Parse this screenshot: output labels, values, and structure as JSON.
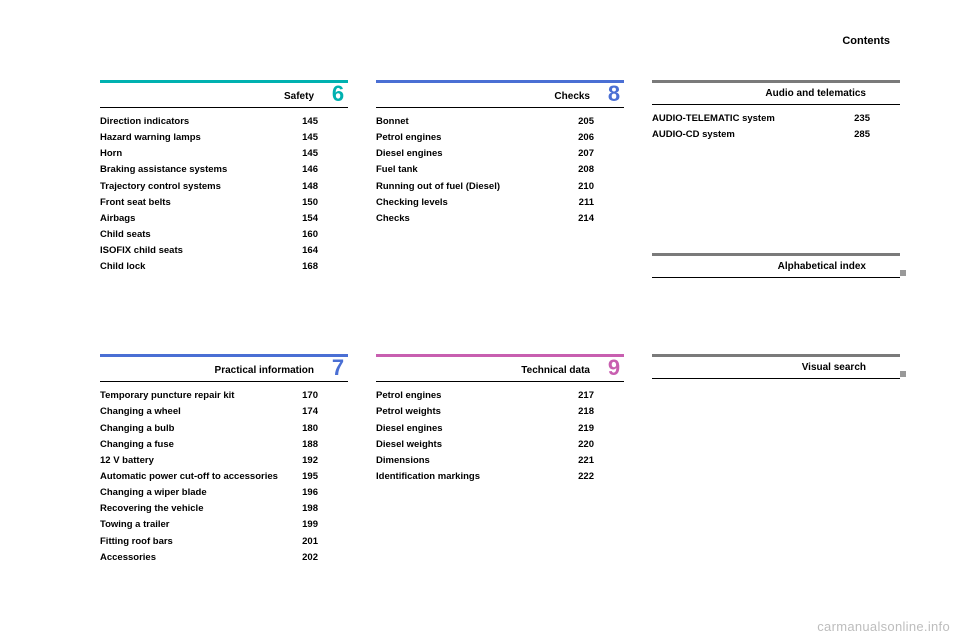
{
  "page_label": "Contents",
  "watermark": "carmanualsonline.info",
  "colors": {
    "safety": "#00b1b0",
    "practical": "#4a6fd4",
    "checks": "#4a6fd4",
    "technical": "#c85fb0",
    "audio": "#7a7a7a",
    "index": "#7a7a7a",
    "visual": "#7a7a7a"
  },
  "sections": [
    {
      "title": "Safety",
      "number": "6",
      "color_key": "safety",
      "entries": [
        {
          "label": "Direction indicators",
          "page": "145"
        },
        {
          "label": "Hazard warning lamps",
          "page": "145"
        },
        {
          "label": "Horn",
          "page": "145"
        },
        {
          "label": "Braking assistance systems",
          "page": "146"
        },
        {
          "label": "Trajectory control systems",
          "page": "148"
        },
        {
          "label": "Front seat belts",
          "page": "150"
        },
        {
          "label": "Airbags",
          "page": "154"
        },
        {
          "label": "Child seats",
          "page": "160"
        },
        {
          "label": "ISOFIX child seats",
          "page": "164"
        },
        {
          "label": "Child lock",
          "page": "168"
        }
      ]
    },
    {
      "title": "Checks",
      "number": "8",
      "color_key": "checks",
      "entries": [
        {
          "label": "Bonnet",
          "page": "205"
        },
        {
          "label": "Petrol engines",
          "page": "206"
        },
        {
          "label": "Diesel engines",
          "page": "207"
        },
        {
          "label": "Fuel tank",
          "page": "208"
        },
        {
          "label": "Running out of fuel (Diesel)",
          "page": "210"
        },
        {
          "label": "Checking levels",
          "page": "211"
        },
        {
          "label": "Checks",
          "page": "214"
        }
      ]
    },
    {
      "title": "Audio and telematics",
      "number": "",
      "color_key": "audio",
      "entries": [
        {
          "label": "AUDIO-TELEMATIC system",
          "page": "235"
        },
        {
          "label": "AUDIO-CD system",
          "page": "285"
        }
      ],
      "extra_below": {
        "title": "Alphabetical index",
        "marker": true
      }
    },
    {
      "title": "Practical information",
      "number": "7",
      "color_key": "practical",
      "entries": [
        {
          "label": "Temporary puncture repair kit",
          "page": "170"
        },
        {
          "label": "Changing a wheel",
          "page": "174"
        },
        {
          "label": "Changing a bulb",
          "page": "180"
        },
        {
          "label": "Changing a fuse",
          "page": "188"
        },
        {
          "label": "12 V battery",
          "page": "192"
        },
        {
          "label": "Automatic power cut-off to accessories",
          "page": "195"
        },
        {
          "label": "Changing a wiper blade",
          "page": "196"
        },
        {
          "label": "Recovering the vehicle",
          "page": "198"
        },
        {
          "label": "Towing a trailer",
          "page": "199"
        },
        {
          "label": "Fitting roof bars",
          "page": "201"
        },
        {
          "label": "Accessories",
          "page": "202"
        }
      ]
    },
    {
      "title": "Technical data",
      "number": "9",
      "color_key": "technical",
      "entries": [
        {
          "label": "Petrol engines",
          "page": "217"
        },
        {
          "label": "Petrol weights",
          "page": "218"
        },
        {
          "label": "Diesel engines",
          "page": "219"
        },
        {
          "label": "Diesel weights",
          "page": "220"
        },
        {
          "label": "Dimensions",
          "page": "221"
        },
        {
          "label": "Identification markings",
          "page": "222"
        }
      ]
    },
    {
      "title": "Visual search",
      "number": "",
      "color_key": "visual",
      "entries": [],
      "marker": true
    }
  ]
}
